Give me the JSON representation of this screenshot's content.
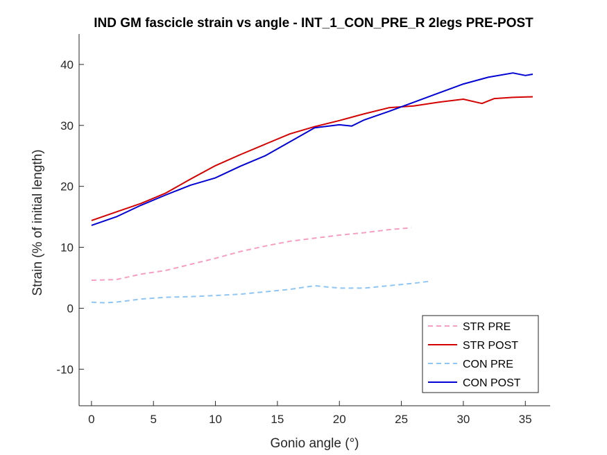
{
  "chart_data": {
    "type": "line",
    "title": "IND GM fascicle strain vs angle - INT_1_CON_PRE_R 2legs PRE-POST",
    "xlabel": "Gonio angle (°)",
    "ylabel": "Strain (% of initial length)",
    "xlim": [
      -1,
      37
    ],
    "ylim": [
      -16,
      45
    ],
    "xticks": [
      0,
      5,
      10,
      15,
      20,
      25,
      30,
      35
    ],
    "yticks": [
      -10,
      0,
      10,
      20,
      30,
      40
    ],
    "grid": false,
    "legend_position": "bottom-right",
    "series": [
      {
        "name": "STR PRE",
        "color": "#f59ec2",
        "style": "dashed",
        "x": [
          0,
          2,
          4,
          6,
          8,
          10,
          12,
          14,
          16,
          18,
          20,
          22,
          24,
          25.8
        ],
        "y": [
          4.6,
          4.7,
          5.6,
          6.2,
          7.2,
          8.2,
          9.3,
          10.2,
          11.0,
          11.5,
          12.0,
          12.4,
          12.9,
          13.2
        ]
      },
      {
        "name": "STR POST",
        "color": "#d40000",
        "style": "solid",
        "x": [
          0,
          2,
          4,
          6,
          8,
          10,
          12,
          14,
          16,
          18,
          20,
          22,
          24,
          26,
          28,
          30,
          31.5,
          32.5,
          34,
          35.6
        ],
        "y": [
          14.4,
          15.8,
          17.2,
          18.9,
          21.2,
          23.4,
          25.2,
          26.9,
          28.6,
          29.8,
          30.8,
          31.9,
          32.9,
          33.2,
          33.8,
          34.3,
          33.6,
          34.4,
          34.6,
          34.7
        ]
      },
      {
        "name": "CON PRE",
        "color": "#8ec5f2",
        "style": "dashed",
        "x": [
          0,
          1,
          2,
          4,
          6,
          8,
          10,
          12,
          14,
          16,
          18,
          19,
          20,
          22,
          24,
          26,
          27.2
        ],
        "y": [
          1.0,
          0.9,
          1.0,
          1.5,
          1.8,
          1.9,
          2.1,
          2.3,
          2.7,
          3.1,
          3.7,
          3.5,
          3.3,
          3.3,
          3.7,
          4.1,
          4.4
        ]
      },
      {
        "name": "CON POST",
        "color": "#0000d4",
        "style": "solid",
        "x": [
          0,
          2,
          4,
          6,
          8,
          10,
          12,
          14,
          16,
          18,
          20,
          21,
          22,
          24,
          26,
          28,
          30,
          32,
          34,
          35,
          35.6
        ],
        "y": [
          13.6,
          15.0,
          16.9,
          18.6,
          20.2,
          21.4,
          23.3,
          25.0,
          27.3,
          29.6,
          30.1,
          29.9,
          30.9,
          32.3,
          33.8,
          35.3,
          36.8,
          37.9,
          38.6,
          38.2,
          38.4
        ]
      }
    ]
  }
}
